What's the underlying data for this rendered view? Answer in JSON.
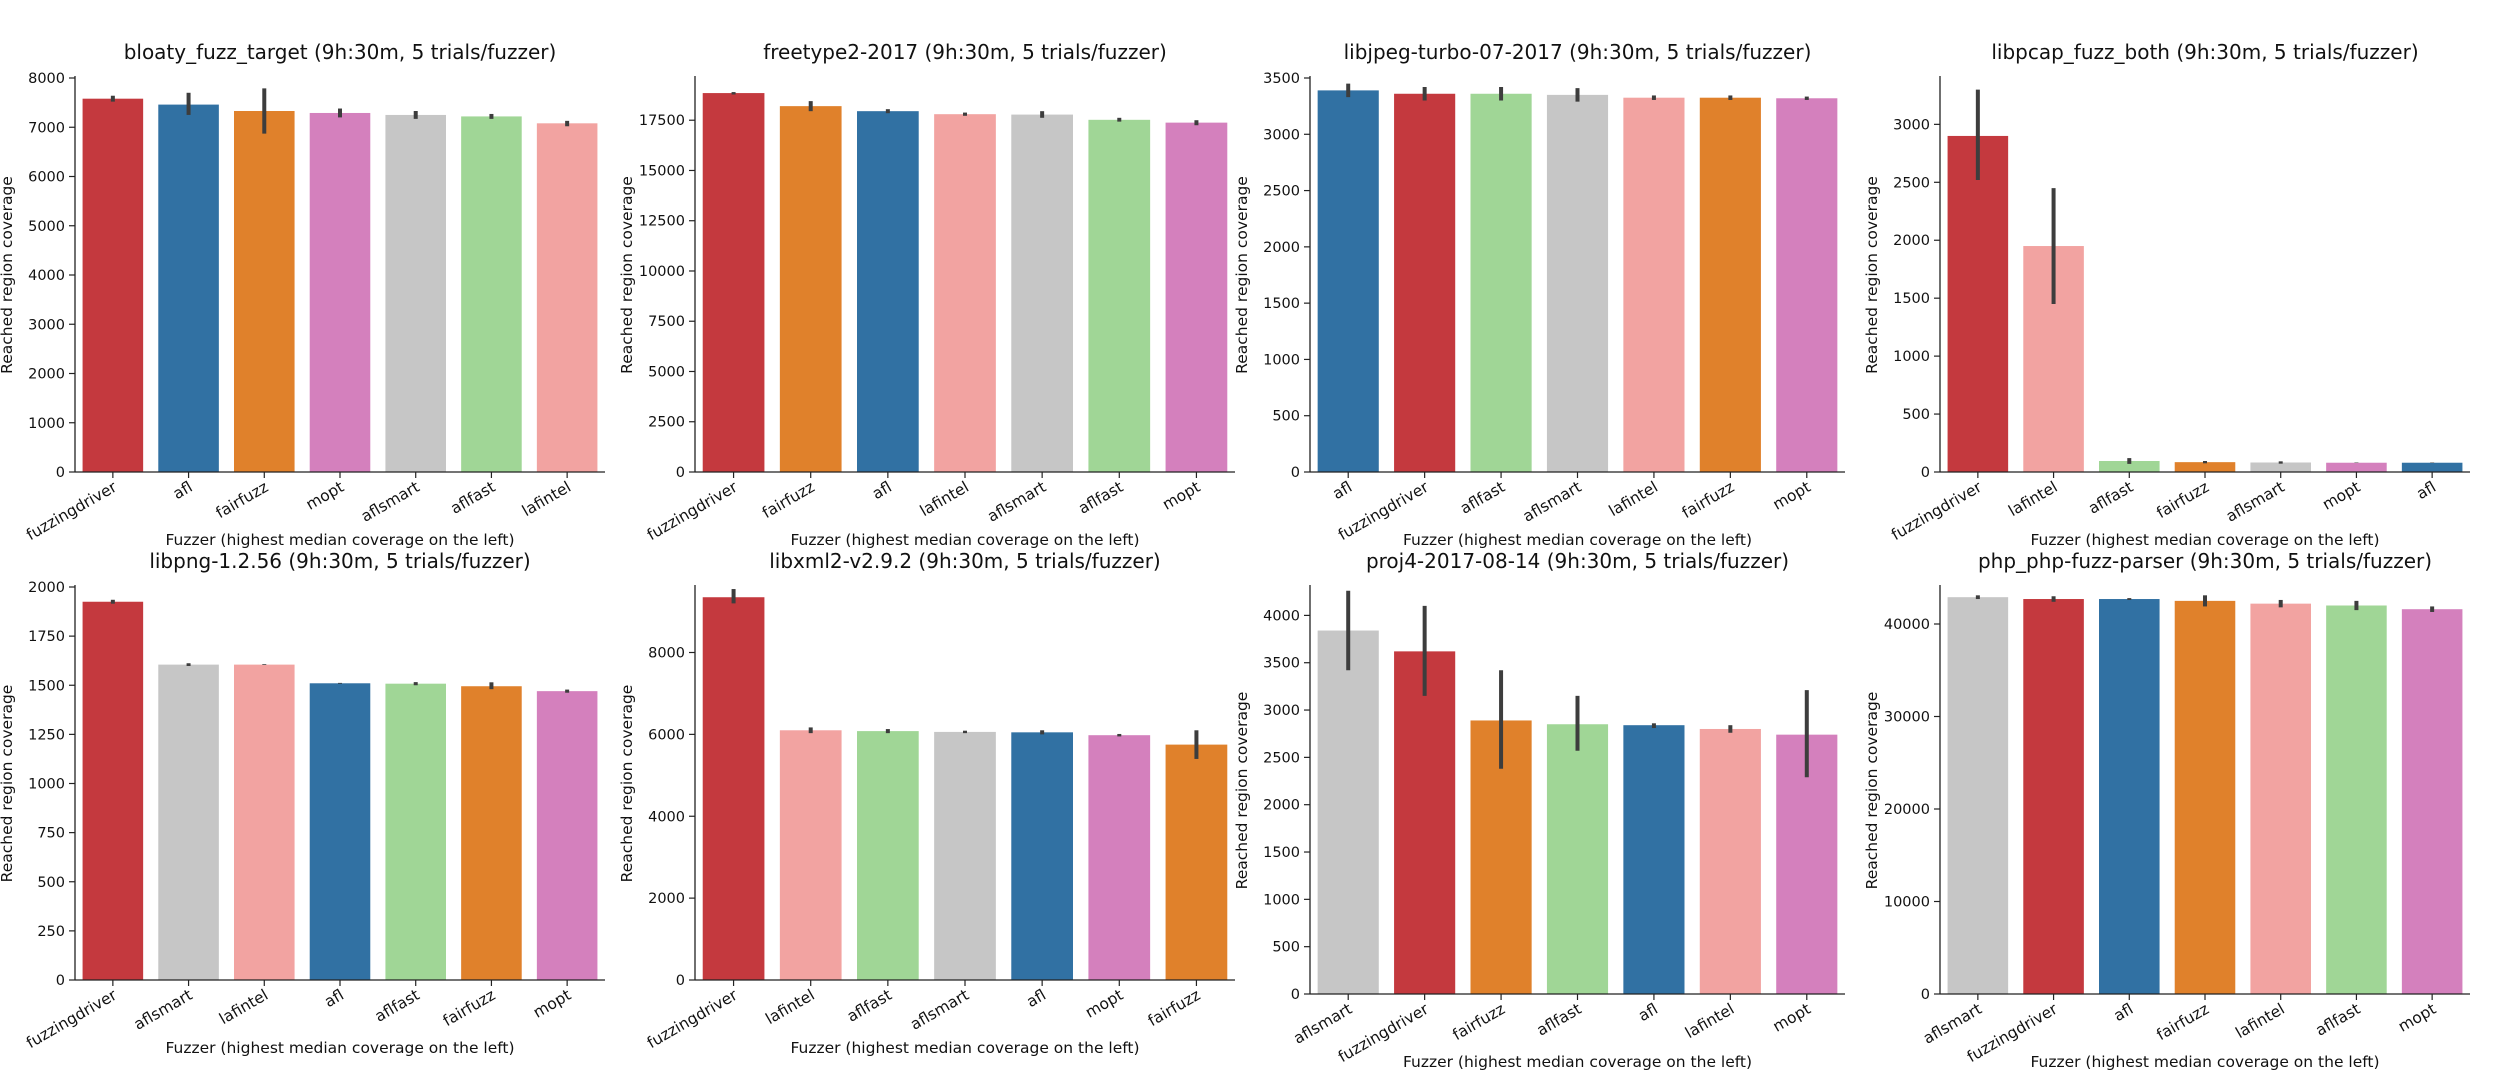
{
  "colors": {
    "fuzzingdriver": "#c4393e",
    "afl": "#3171a3",
    "fairfuzz": "#e0812b",
    "mopt": "#d480bd",
    "aflsmart": "#c6c6c6",
    "aflfast": "#a0d696",
    "lafintel": "#f2a3a1"
  },
  "chart_data": [
    {
      "type": "bar",
      "title": "bloaty_fuzz_target (9h:30m, 5 trials/fuzzer)",
      "xlabel": "Fuzzer (highest median coverage on the left)",
      "ylabel": "Reached region coverage",
      "ylim": [
        0,
        8000
      ],
      "yticks": [
        0,
        1000,
        2000,
        3000,
        4000,
        5000,
        6000,
        7000,
        8000
      ],
      "yticklabels": [
        "0",
        "1000",
        "2000",
        "3000",
        "4000",
        "5000",
        "6000",
        "7000",
        "8000"
      ],
      "categories": [
        "fuzzingdriver",
        "afl",
        "fairfuzz",
        "mopt",
        "aflsmart",
        "aflfast",
        "lafintel"
      ],
      "values": [
        7580,
        7460,
        7330,
        7290,
        7250,
        7220,
        7080
      ],
      "errors": [
        [
          7520,
          7640
        ],
        [
          7250,
          7700
        ],
        [
          6870,
          7790
        ],
        [
          7200,
          7380
        ],
        [
          7170,
          7330
        ],
        [
          7170,
          7270
        ],
        [
          7020,
          7130
        ]
      ]
    },
    {
      "type": "bar",
      "title": "freetype2-2017 (9h:30m, 5 trials/fuzzer)",
      "xlabel": "Fuzzer (highest median coverage on the left)",
      "ylabel": "Reached region coverage",
      "ylim": [
        0,
        19600
      ],
      "yticks": [
        0,
        2500,
        5000,
        7500,
        10000,
        12500,
        15000,
        17500
      ],
      "yticklabels": [
        "0",
        "2500",
        "5000",
        "7500",
        "10000",
        "12500",
        "15000",
        "17500"
      ],
      "categories": [
        "fuzzingdriver",
        "fairfuzz",
        "afl",
        "lafintel",
        "aflsmart",
        "aflfast",
        "mopt"
      ],
      "values": [
        18850,
        18200,
        17950,
        17800,
        17780,
        17520,
        17380
      ],
      "errors": [
        [
          18780,
          18900
        ],
        [
          17950,
          18450
        ],
        [
          17850,
          18050
        ],
        [
          17720,
          17880
        ],
        [
          17620,
          17950
        ],
        [
          17430,
          17620
        ],
        [
          17250,
          17500
        ]
      ]
    },
    {
      "type": "bar",
      "title": "libjpeg-turbo-07-2017 (9h:30m, 5 trials/fuzzer)",
      "xlabel": "Fuzzer (highest median coverage on the left)",
      "ylabel": "Reached region coverage",
      "ylim": [
        0,
        3500
      ],
      "yticks": [
        0,
        500,
        1000,
        1500,
        2000,
        2500,
        3000,
        3500
      ],
      "yticklabels": [
        "0",
        "500",
        "1000",
        "1500",
        "2000",
        "2500",
        "3000",
        "3500"
      ],
      "categories": [
        "afl",
        "fuzzingdriver",
        "aflfast",
        "aflsmart",
        "lafintel",
        "fairfuzz",
        "mopt"
      ],
      "values": [
        3390,
        3360,
        3360,
        3350,
        3325,
        3325,
        3320
      ],
      "errors": [
        [
          3330,
          3450
        ],
        [
          3300,
          3420
        ],
        [
          3300,
          3420
        ],
        [
          3290,
          3410
        ],
        [
          3305,
          3345
        ],
        [
          3305,
          3345
        ],
        [
          3305,
          3335
        ]
      ]
    },
    {
      "type": "bar",
      "title": "libpcap_fuzz_both (9h:30m, 5 trials/fuzzer)",
      "xlabel": "Fuzzer (highest median coverage on the left)",
      "ylabel": "Reached region coverage",
      "ylim": [
        0,
        3400
      ],
      "yticks": [
        0,
        500,
        1000,
        1500,
        2000,
        2500,
        3000
      ],
      "yticklabels": [
        "0",
        "500",
        "1000",
        "1500",
        "2000",
        "2500",
        "3000"
      ],
      "categories": [
        "fuzzingdriver",
        "lafintel",
        "aflfast",
        "fairfuzz",
        "aflsmart",
        "mopt",
        "afl"
      ],
      "values": [
        2900,
        1950,
        95,
        85,
        82,
        80,
        80
      ],
      "errors": [
        [
          2520,
          3300
        ],
        [
          1450,
          2450
        ],
        [
          70,
          120
        ],
        [
          75,
          95
        ],
        [
          72,
          92
        ],
        [
          78,
          82
        ],
        [
          78,
          82
        ]
      ]
    },
    {
      "type": "bar",
      "title": "libpng-1.2.56 (9h:30m, 5 trials/fuzzer)",
      "xlabel": "Fuzzer (highest median coverage on the left)",
      "ylabel": "Reached region coverage",
      "ylim": [
        0,
        2000
      ],
      "yticks": [
        0,
        250,
        500,
        750,
        1000,
        1250,
        1500,
        1750,
        2000
      ],
      "yticklabels": [
        "0",
        "250",
        "500",
        "750",
        "1000",
        "1250",
        "1500",
        "1750",
        "2000"
      ],
      "categories": [
        "fuzzingdriver",
        "aflsmart",
        "lafintel",
        "afl",
        "aflfast",
        "fairfuzz",
        "mopt"
      ],
      "values": [
        1925,
        1605,
        1605,
        1510,
        1508,
        1495,
        1470
      ],
      "errors": [
        [
          1915,
          1935
        ],
        [
          1598,
          1612
        ],
        [
          1603,
          1607
        ],
        [
          1508,
          1512
        ],
        [
          1500,
          1516
        ],
        [
          1480,
          1515
        ],
        [
          1462,
          1478
        ]
      ]
    },
    {
      "type": "bar",
      "title": "libxml2-v2.9.2 (9h:30m, 5 trials/fuzzer)",
      "xlabel": "Fuzzer (highest median coverage on the left)",
      "ylabel": "Reached region coverage",
      "ylim": [
        0,
        9600
      ],
      "yticks": [
        0,
        2000,
        4000,
        6000,
        8000
      ],
      "yticklabels": [
        "0",
        "2000",
        "4000",
        "6000",
        "8000"
      ],
      "categories": [
        "fuzzingdriver",
        "lafintel",
        "aflfast",
        "aflsmart",
        "afl",
        "mopt",
        "fairfuzz"
      ],
      "values": [
        9350,
        6100,
        6080,
        6060,
        6050,
        5980,
        5750
      ],
      "errors": [
        [
          9200,
          9550
        ],
        [
          6030,
          6170
        ],
        [
          6030,
          6130
        ],
        [
          6030,
          6090
        ],
        [
          6000,
          6100
        ],
        [
          5950,
          6010
        ],
        [
          5400,
          6100
        ]
      ]
    },
    {
      "type": "bar",
      "title": "proj4-2017-08-14 (9h:30m, 5 trials/fuzzer)",
      "xlabel": "Fuzzer (highest median coverage on the left)",
      "ylabel": "Reached region coverage",
      "ylim": [
        0,
        4300
      ],
      "yticks": [
        0,
        500,
        1000,
        1500,
        2000,
        2500,
        3000,
        3500,
        4000
      ],
      "yticklabels": [
        "0",
        "500",
        "1000",
        "1500",
        "2000",
        "2500",
        "3000",
        "3500",
        "4000"
      ],
      "categories": [
        "aflsmart",
        "fuzzingdriver",
        "fairfuzz",
        "aflfast",
        "afl",
        "lafintel",
        "mopt"
      ],
      "values": [
        3840,
        3620,
        2890,
        2850,
        2840,
        2800,
        2740
      ],
      "errors": [
        [
          3420,
          4260
        ],
        [
          3150,
          4100
        ],
        [
          2380,
          3420
        ],
        [
          2570,
          3150
        ],
        [
          2810,
          2860
        ],
        [
          2760,
          2840
        ],
        [
          2290,
          3210
        ]
      ]
    },
    {
      "type": "bar",
      "title": "php_php-fuzz-parser (9h:30m, 5 trials/fuzzer)",
      "xlabel": "Fuzzer (highest median coverage on the left)",
      "ylabel": "Reached region coverage",
      "ylim": [
        0,
        44000
      ],
      "yticks": [
        0,
        10000,
        20000,
        30000,
        40000
      ],
      "yticklabels": [
        "0",
        "10000",
        "20000",
        "30000",
        "40000"
      ],
      "categories": [
        "aflsmart",
        "fuzzingdriver",
        "afl",
        "fairfuzz",
        "lafintel",
        "aflfast",
        "mopt"
      ],
      "values": [
        42900,
        42700,
        42700,
        42500,
        42200,
        42000,
        41600
      ],
      "errors": [
        [
          42700,
          43100
        ],
        [
          42400,
          43000
        ],
        [
          42600,
          42800
        ],
        [
          41900,
          43100
        ],
        [
          41800,
          42600
        ],
        [
          41500,
          42500
        ],
        [
          41300,
          41900
        ]
      ]
    }
  ]
}
